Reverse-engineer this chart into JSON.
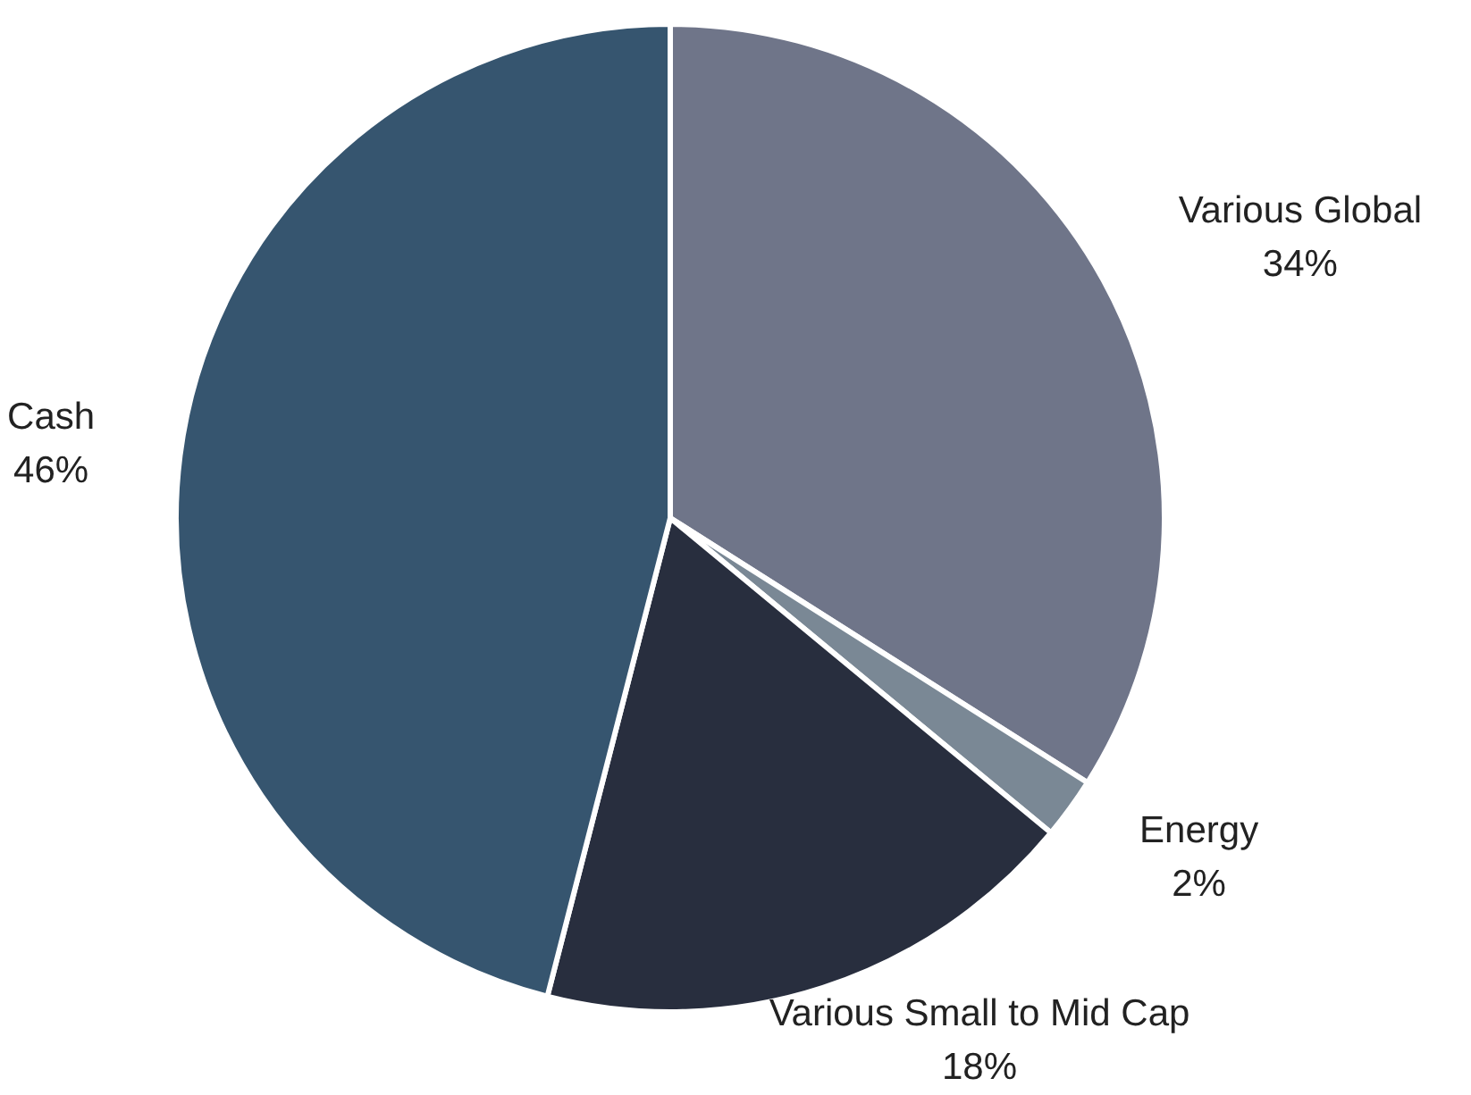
{
  "chart_data": {
    "type": "pie",
    "categories": [
      "Various Global",
      "Energy",
      "Various Small to Mid Cap",
      "Cash"
    ],
    "values": [
      34,
      2,
      18,
      46
    ],
    "colors": [
      "#6f7589",
      "#7a8895",
      "#282e3e",
      "#36556f"
    ],
    "value_labels": [
      "34%",
      "2%",
      "18%",
      "46%"
    ],
    "legend": false
  }
}
